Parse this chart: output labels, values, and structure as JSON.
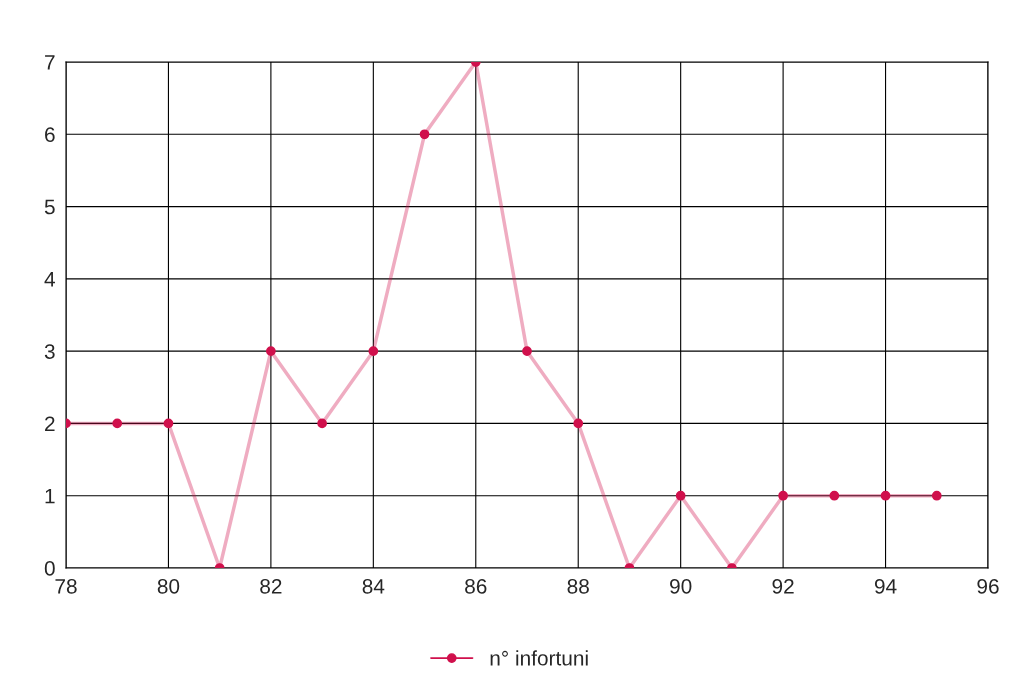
{
  "chart_data": {
    "type": "line",
    "x": [
      78,
      79,
      80,
      81,
      82,
      83,
      84,
      85,
      86,
      87,
      88,
      89,
      90,
      91,
      92,
      93,
      94,
      95
    ],
    "series": [
      {
        "name": "n° infortuni",
        "color": "#d0104c",
        "values": [
          2,
          2,
          2,
          0,
          3,
          2,
          3,
          6,
          7,
          3,
          2,
          0,
          1,
          0,
          1,
          1,
          1,
          1
        ]
      }
    ],
    "xlim": [
      78,
      96
    ],
    "xticks": [
      78,
      80,
      82,
      84,
      86,
      88,
      90,
      92,
      94,
      96
    ],
    "ylim": [
      0,
      7
    ],
    "yticks": [
      0,
      1,
      2,
      3,
      4,
      5,
      6,
      7
    ],
    "grid": true,
    "legend": "bottom",
    "marker": "circle",
    "line_style": "solid"
  }
}
